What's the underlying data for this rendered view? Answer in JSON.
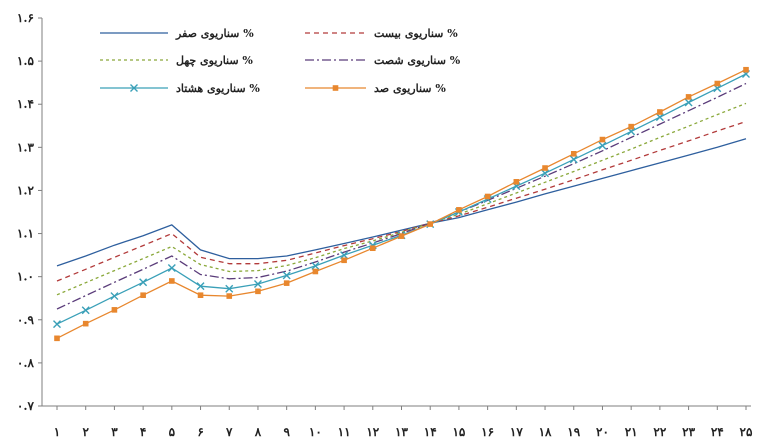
{
  "chart_data": {
    "type": "line",
    "x": [
      1,
      2,
      3,
      4,
      5,
      6,
      7,
      8,
      9,
      10,
      11,
      12,
      13,
      14,
      15,
      16,
      17,
      18,
      19,
      20,
      21,
      22,
      23,
      24,
      25
    ],
    "x_tick_labels": [
      "۱",
      "۲",
      "۳",
      "۴",
      "۵",
      "۶",
      "۷",
      "۸",
      "۹",
      "۱۰",
      "۱۱",
      "۱۲",
      "۱۳",
      "۱۴",
      "۱۵",
      "۱۶",
      "۱۷",
      "۱۸",
      "۱۹",
      "۲۰",
      "۲۱",
      "۲۲",
      "۲۳",
      "۲۴",
      "۲۵"
    ],
    "ylim": [
      0.7,
      1.6
    ],
    "y_ticks": [
      0.7,
      0.8,
      0.9,
      1.0,
      1.1,
      1.2,
      1.3,
      1.4,
      1.5,
      1.6
    ],
    "y_tick_labels": [
      "۰.۷",
      "۰.۸",
      "۰.۹",
      "۱.۰",
      "۱.۱",
      "۱.۲",
      "۱.۳",
      "۱.۴",
      "۱.۵",
      "۱.۶"
    ],
    "grid": false,
    "legend_position": "top",
    "series": [
      {
        "name": "سناریوی صفر %",
        "color": "#2e5f9e",
        "dash": "",
        "marker": "none",
        "values": [
          1.025,
          1.048,
          1.073,
          1.095,
          1.12,
          1.062,
          1.042,
          1.042,
          1.048,
          1.062,
          1.077,
          1.092,
          1.108,
          1.124,
          1.137,
          1.155,
          1.173,
          1.192,
          1.21,
          1.228,
          1.246,
          1.264,
          1.282,
          1.3,
          1.32
        ]
      },
      {
        "name": "سناریوی بیست %",
        "color": "#b23a3a",
        "dash": "5,4",
        "marker": "none",
        "values": [
          0.99,
          1.017,
          1.045,
          1.072,
          1.1,
          1.045,
          1.03,
          1.03,
          1.038,
          1.055,
          1.072,
          1.088,
          1.105,
          1.124,
          1.141,
          1.161,
          1.182,
          1.203,
          1.225,
          1.248,
          1.27,
          1.293,
          1.315,
          1.338,
          1.36
        ]
      },
      {
        "name": "سناریوی چهل %",
        "color": "#8aa83a",
        "dash": "3,3",
        "marker": "none",
        "values": [
          0.958,
          0.986,
          1.014,
          1.042,
          1.07,
          1.028,
          1.012,
          1.014,
          1.026,
          1.044,
          1.065,
          1.083,
          1.103,
          1.124,
          1.145,
          1.169,
          1.194,
          1.219,
          1.244,
          1.27,
          1.296,
          1.323,
          1.349,
          1.376,
          1.402
        ]
      },
      {
        "name": "سناریوی شصت %",
        "color": "#5a3c7a",
        "dash": "9,3,2,3",
        "marker": "none",
        "values": [
          0.925,
          0.956,
          0.987,
          1.017,
          1.048,
          1.005,
          0.995,
          0.998,
          1.013,
          1.034,
          1.057,
          1.078,
          1.1,
          1.124,
          1.15,
          1.177,
          1.205,
          1.233,
          1.262,
          1.292,
          1.323,
          1.354,
          1.385,
          1.416,
          1.448
        ]
      },
      {
        "name": "سناریوی هشتاد %",
        "color": "#3aa0b8",
        "dash": "",
        "marker": "x",
        "values": [
          0.89,
          0.922,
          0.955,
          0.987,
          1.02,
          0.978,
          0.972,
          0.983,
          1.003,
          1.025,
          1.05,
          1.073,
          1.096,
          1.122,
          1.15,
          1.18,
          1.21,
          1.24,
          1.272,
          1.304,
          1.337,
          1.37,
          1.404,
          1.437,
          1.47
        ]
      },
      {
        "name": "سناریوی صد %",
        "color": "#e8872e",
        "dash": "",
        "marker": "square",
        "values": [
          0.857,
          0.891,
          0.923,
          0.957,
          0.99,
          0.957,
          0.955,
          0.966,
          0.985,
          1.012,
          1.038,
          1.066,
          1.094,
          1.122,
          1.155,
          1.186,
          1.22,
          1.252,
          1.285,
          1.318,
          1.348,
          1.382,
          1.417,
          1.448,
          1.48
        ]
      }
    ]
  }
}
